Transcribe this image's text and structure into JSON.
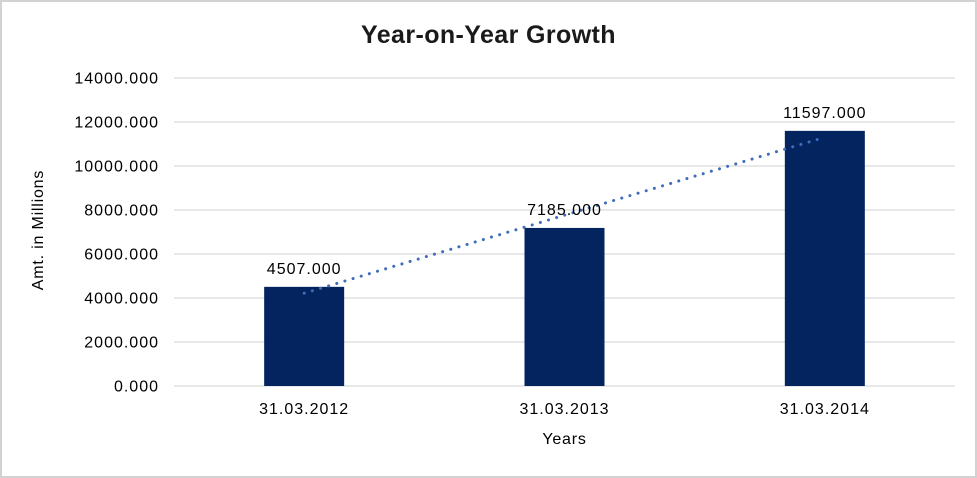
{
  "chart_data": {
    "type": "bar",
    "title": "Year-on-Year Growth",
    "xlabel": "Years",
    "ylabel": "Amt. in Millions",
    "categories": [
      "31.03.2012",
      "31.03.2013",
      "31.03.2014"
    ],
    "values": [
      4507,
      7185,
      11597
    ],
    "data_labels": [
      "4507.000",
      "7185.000",
      "11597.000"
    ],
    "ylim": [
      0,
      14000
    ],
    "ytick_step": 2000,
    "ytick_labels": [
      "0.000",
      "2000.000",
      "4000.000",
      "6000.000",
      "8000.000",
      "10000.000",
      "12000.000",
      "14000.000"
    ],
    "grid": "horizontal",
    "legend": "none",
    "trendline": {
      "type": "linear",
      "style": "dotted",
      "fit_values": [
        4218,
        7763,
        11308
      ]
    },
    "colors": {
      "bar": "#03245e",
      "trendline": "#3f6db8",
      "gridline": "#d9d9d9",
      "title_text": "#1a1a1a",
      "axis_text": "#000000",
      "frame_border": "#d2d2d2",
      "background": "#ffffff"
    }
  }
}
